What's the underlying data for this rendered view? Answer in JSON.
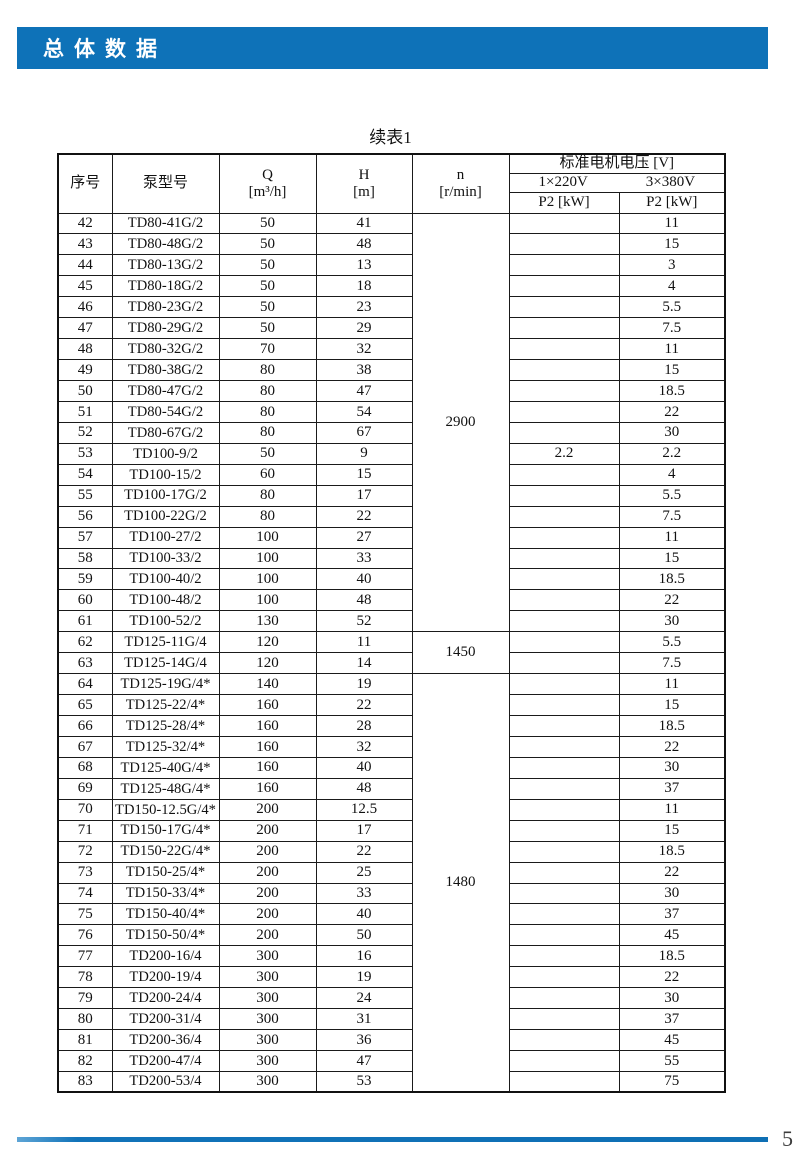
{
  "header_bar": {
    "title": "总体数据"
  },
  "table_title": "续表1",
  "table": {
    "columns": {
      "seq": "序号",
      "model": "泵型号",
      "q1": "Q",
      "q2": "[m³/h]",
      "h1": "H",
      "h2": "[m]",
      "n1": "n",
      "n2": "[r/min]",
      "voltage_group": "标准电机电压 [V]",
      "v220": "1×220V",
      "v380": "3×380V",
      "p2": "P2 [kW]"
    },
    "speed_col": [
      {
        "start_no": "42",
        "rows": 20,
        "value": "2900"
      },
      {
        "start_no": "62",
        "rows": 2,
        "value": "1450"
      },
      {
        "start_no": "64",
        "rows": 20,
        "value": "1480"
      }
    ],
    "rows": [
      {
        "no": "42",
        "model": "TD80-41G/2",
        "q": "50",
        "h": "41",
        "p220": "",
        "p380": "11"
      },
      {
        "no": "43",
        "model": "TD80-48G/2",
        "q": "50",
        "h": "48",
        "p220": "",
        "p380": "15"
      },
      {
        "no": "44",
        "model": "TD80-13G/2",
        "q": "50",
        "h": "13",
        "p220": "",
        "p380": "3"
      },
      {
        "no": "45",
        "model": "TD80-18G/2",
        "q": "50",
        "h": "18",
        "p220": "",
        "p380": "4"
      },
      {
        "no": "46",
        "model": "TD80-23G/2",
        "q": "50",
        "h": "23",
        "p220": "",
        "p380": "5.5"
      },
      {
        "no": "47",
        "model": "TD80-29G/2",
        "q": "50",
        "h": "29",
        "p220": "",
        "p380": "7.5"
      },
      {
        "no": "48",
        "model": "TD80-32G/2",
        "q": "70",
        "h": "32",
        "p220": "",
        "p380": "11"
      },
      {
        "no": "49",
        "model": "TD80-38G/2",
        "q": "80",
        "h": "38",
        "p220": "",
        "p380": "15"
      },
      {
        "no": "50",
        "model": "TD80-47G/2",
        "q": "80",
        "h": "47",
        "p220": "",
        "p380": "18.5"
      },
      {
        "no": "51",
        "model": "TD80-54G/2",
        "q": "80",
        "h": "54",
        "p220": "",
        "p380": "22"
      },
      {
        "no": "52",
        "model": "TD80-67G/2",
        "q": "80",
        "h": "67",
        "p220": "",
        "p380": "30"
      },
      {
        "no": "53",
        "model": "TD100-9/2",
        "q": "50",
        "h": "9",
        "p220": "2.2",
        "p380": "2.2"
      },
      {
        "no": "54",
        "model": "TD100-15/2",
        "q": "60",
        "h": "15",
        "p220": "",
        "p380": "4"
      },
      {
        "no": "55",
        "model": "TD100-17G/2",
        "q": "80",
        "h": "17",
        "p220": "",
        "p380": "5.5"
      },
      {
        "no": "56",
        "model": "TD100-22G/2",
        "q": "80",
        "h": "22",
        "p220": "",
        "p380": "7.5"
      },
      {
        "no": "57",
        "model": "TD100-27/2",
        "q": "100",
        "h": "27",
        "p220": "",
        "p380": "11"
      },
      {
        "no": "58",
        "model": "TD100-33/2",
        "q": "100",
        "h": "33",
        "p220": "",
        "p380": "15"
      },
      {
        "no": "59",
        "model": "TD100-40/2",
        "q": "100",
        "h": "40",
        "p220": "",
        "p380": "18.5"
      },
      {
        "no": "60",
        "model": "TD100-48/2",
        "q": "100",
        "h": "48",
        "p220": "",
        "p380": "22"
      },
      {
        "no": "61",
        "model": "TD100-52/2",
        "q": "130",
        "h": "52",
        "p220": "",
        "p380": "30"
      },
      {
        "no": "62",
        "model": "TD125-11G/4",
        "q": "120",
        "h": "11",
        "p220": "",
        "p380": "5.5"
      },
      {
        "no": "63",
        "model": "TD125-14G/4",
        "q": "120",
        "h": "14",
        "p220": "",
        "p380": "7.5"
      },
      {
        "no": "64",
        "model": "TD125-19G/4*",
        "q": "140",
        "h": "19",
        "p220": "",
        "p380": "11"
      },
      {
        "no": "65",
        "model": "TD125-22/4*",
        "q": "160",
        "h": "22",
        "p220": "",
        "p380": "15"
      },
      {
        "no": "66",
        "model": "TD125-28/4*",
        "q": "160",
        "h": "28",
        "p220": "",
        "p380": "18.5"
      },
      {
        "no": "67",
        "model": "TD125-32/4*",
        "q": "160",
        "h": "32",
        "p220": "",
        "p380": "22"
      },
      {
        "no": "68",
        "model": "TD125-40G/4*",
        "q": "160",
        "h": "40",
        "p220": "",
        "p380": "30"
      },
      {
        "no": "69",
        "model": "TD125-48G/4*",
        "q": "160",
        "h": "48",
        "p220": "",
        "p380": "37"
      },
      {
        "no": "70",
        "model": "TD150-12.5G/4*",
        "q": "200",
        "h": "12.5",
        "p220": "",
        "p380": "11"
      },
      {
        "no": "71",
        "model": "TD150-17G/4*",
        "q": "200",
        "h": "17",
        "p220": "",
        "p380": "15"
      },
      {
        "no": "72",
        "model": "TD150-22G/4*",
        "q": "200",
        "h": "22",
        "p220": "",
        "p380": "18.5"
      },
      {
        "no": "73",
        "model": "TD150-25/4*",
        "q": "200",
        "h": "25",
        "p220": "",
        "p380": "22"
      },
      {
        "no": "74",
        "model": "TD150-33/4*",
        "q": "200",
        "h": "33",
        "p220": "",
        "p380": "30"
      },
      {
        "no": "75",
        "model": "TD150-40/4*",
        "q": "200",
        "h": "40",
        "p220": "",
        "p380": "37"
      },
      {
        "no": "76",
        "model": "TD150-50/4*",
        "q": "200",
        "h": "50",
        "p220": "",
        "p380": "45"
      },
      {
        "no": "77",
        "model": "TD200-16/4",
        "q": "300",
        "h": "16",
        "p220": "",
        "p380": "18.5"
      },
      {
        "no": "78",
        "model": "TD200-19/4",
        "q": "300",
        "h": "19",
        "p220": "",
        "p380": "22"
      },
      {
        "no": "79",
        "model": "TD200-24/4",
        "q": "300",
        "h": "24",
        "p220": "",
        "p380": "30"
      },
      {
        "no": "80",
        "model": "TD200-31/4",
        "q": "300",
        "h": "31",
        "p220": "",
        "p380": "37"
      },
      {
        "no": "81",
        "model": "TD200-36/4",
        "q": "300",
        "h": "36",
        "p220": "",
        "p380": "45"
      },
      {
        "no": "82",
        "model": "TD200-47/4",
        "q": "300",
        "h": "47",
        "p220": "",
        "p380": "55"
      },
      {
        "no": "83",
        "model": "TD200-53/4",
        "q": "300",
        "h": "53",
        "p220": "",
        "p380": "75"
      }
    ]
  },
  "footer": {
    "page_number": "5"
  },
  "colors": {
    "brand_blue": "#0e72b8"
  }
}
